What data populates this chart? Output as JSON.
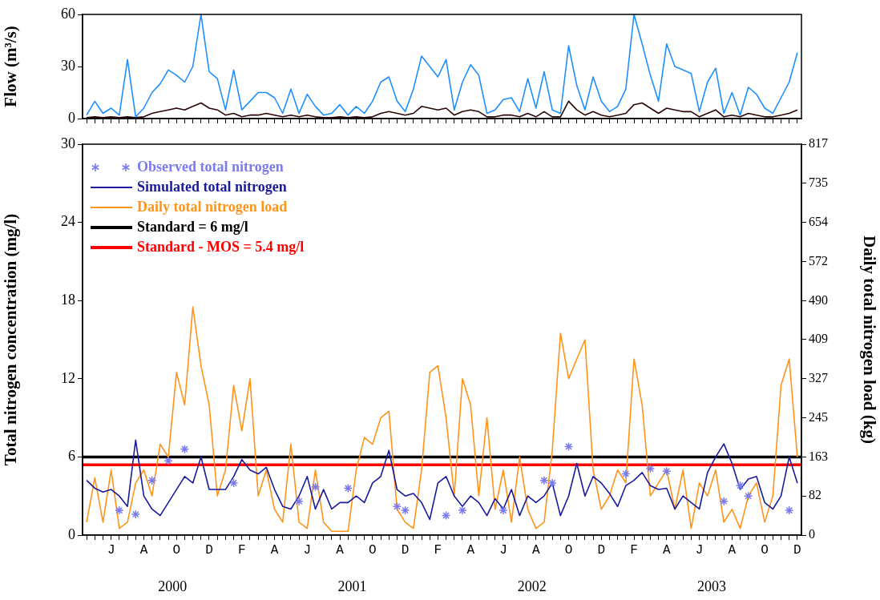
{
  "chart_data": [
    {
      "type": "line",
      "ylabel": "Flow (m³/s)",
      "tick_labels": "y",
      "categories": [
        null,
        null,
        null,
        null,
        null,
        null,
        null,
        null,
        null,
        null,
        null,
        null,
        null,
        null,
        null,
        null,
        null,
        null,
        null,
        null,
        null,
        null,
        null,
        null,
        null,
        null,
        null,
        null,
        null,
        null,
        null,
        null,
        null,
        null,
        null,
        null,
        null,
        null,
        null,
        null,
        null,
        null,
        null,
        null,
        null,
        null,
        null,
        null,
        null,
        null,
        null,
        null,
        null,
        null,
        null,
        null,
        null,
        null,
        null,
        null,
        null,
        null,
        null,
        null,
        null,
        null,
        null,
        null,
        null,
        null,
        null,
        null,
        null,
        null,
        null,
        null,
        null,
        null,
        null,
        null,
        null,
        null,
        null,
        null,
        null,
        null,
        null,
        null
      ],
      "ylim": [
        0,
        60
      ],
      "yticks": [
        0,
        30,
        60
      ],
      "series": [
        {
          "color": "#1e8fff",
          "values": [
            2,
            10,
            3,
            6,
            2,
            34,
            1,
            6,
            15,
            20,
            28,
            25,
            21,
            30,
            60,
            27,
            23,
            5,
            28,
            5,
            10,
            15,
            15,
            12,
            3,
            17,
            3,
            14,
            7,
            2,
            3,
            8,
            2,
            7,
            3,
            10,
            21,
            24,
            10,
            4,
            17,
            36,
            30,
            24,
            34,
            5,
            21,
            31,
            25,
            3,
            5,
            11,
            12,
            4,
            23,
            6,
            27,
            5,
            3,
            42,
            19,
            5,
            24,
            10,
            4,
            7,
            17,
            60,
            43,
            25,
            10,
            43,
            30,
            28,
            26,
            4,
            21,
            29,
            3,
            15,
            2,
            18,
            14,
            6,
            3,
            12,
            21,
            38
          ]
        },
        {
          "color": "#2a0505",
          "values": [
            0.5,
            1,
            0.5,
            1,
            0.5,
            1,
            0.5,
            1,
            3,
            4,
            5,
            6,
            5,
            7,
            9,
            6,
            5,
            2,
            3,
            1,
            2,
            2,
            3,
            2,
            1,
            2,
            1,
            2,
            1,
            0.5,
            0.5,
            1,
            0.5,
            1,
            0.5,
            1,
            3,
            4,
            3,
            2,
            3,
            7,
            6,
            5,
            6,
            2,
            4,
            5,
            4,
            1,
            1,
            2,
            2,
            1,
            3,
            1,
            4,
            1,
            1,
            10,
            5,
            2,
            4,
            2,
            1,
            2,
            3,
            8,
            9,
            6,
            3,
            6,
            5,
            4,
            4,
            1,
            3,
            5,
            1,
            2,
            1,
            3,
            2,
            1,
            1,
            2,
            3,
            5
          ]
        }
      ]
    },
    {
      "type": "line",
      "ylabel": "Total nitrogen concentration (mg/l)",
      "y2label": "Daily total nitrogen load (kg)",
      "legend": "top left",
      "categories": [
        null,
        null,
        null,
        "J",
        null,
        null,
        null,
        "A",
        null,
        null,
        null,
        "O",
        null,
        null,
        null,
        "D",
        null,
        null,
        null,
        "F",
        null,
        null,
        null,
        "A",
        null,
        null,
        null,
        "J",
        null,
        null,
        null,
        "A",
        null,
        null,
        null,
        "O",
        null,
        null,
        null,
        "D",
        null,
        null,
        null,
        "F",
        null,
        null,
        null,
        "A",
        null,
        null,
        null,
        "J",
        null,
        null,
        null,
        "A",
        null,
        null,
        null,
        "O",
        null,
        null,
        null,
        "D",
        null,
        null,
        null,
        "F",
        null,
        null,
        null,
        "A",
        null,
        null,
        null,
        "J",
        null,
        null,
        null,
        "A",
        null,
        null,
        null,
        "O",
        null,
        null,
        null,
        "D"
      ],
      "ylim": [
        0,
        30
      ],
      "yticks": [
        0,
        6,
        12,
        18,
        24,
        30
      ],
      "y2lim": [
        0,
        817
      ],
      "y2ticks": [
        0,
        82,
        163,
        245,
        327,
        409,
        490,
        572,
        654,
        735,
        817
      ],
      "series": [
        {
          "name": "Observed total nitrogen",
          "type": "scatter",
          "marker": "cross",
          "color": "#7b7bf0",
          "values": [
            null,
            null,
            null,
            null,
            1.9,
            null,
            1.6,
            null,
            4.2,
            null,
            5.7,
            null,
            6.6,
            null,
            null,
            null,
            null,
            null,
            4.0,
            null,
            null,
            null,
            null,
            null,
            null,
            null,
            2.6,
            null,
            3.7,
            null,
            null,
            null,
            3.6,
            null,
            null,
            null,
            null,
            null,
            2.2,
            1.9,
            null,
            null,
            null,
            null,
            1.5,
            null,
            1.9,
            null,
            null,
            null,
            null,
            1.9,
            null,
            null,
            null,
            null,
            4.2,
            4.0,
            null,
            6.8,
            null,
            null,
            null,
            null,
            null,
            null,
            4.7,
            null,
            null,
            5.1,
            null,
            4.9,
            null,
            null,
            null,
            null,
            null,
            null,
            2.6,
            null,
            3.8,
            3.0,
            null,
            null,
            null,
            null,
            1.9,
            null
          ]
        },
        {
          "name": "Simulated total nitrogen",
          "color": "#1a1a9c",
          "values": [
            4.2,
            3.6,
            3.3,
            3.5,
            3.0,
            2.2,
            7.3,
            3.0,
            2.0,
            1.5,
            2.5,
            3.5,
            4.5,
            4.0,
            6.0,
            3.5,
            3.5,
            3.5,
            4.5,
            5.8,
            5.0,
            4.7,
            5.2,
            3.5,
            2.2,
            2.0,
            3.0,
            4.5,
            2.0,
            3.5,
            2.0,
            2.5,
            2.5,
            3.0,
            2.5,
            4.0,
            4.5,
            6.5,
            3.5,
            3.0,
            3.2,
            2.5,
            1.2,
            4.0,
            4.5,
            3.0,
            2.2,
            3.0,
            2.5,
            1.5,
            2.8,
            2.0,
            3.5,
            1.5,
            3.0,
            2.5,
            3.0,
            4.0,
            1.5,
            3.0,
            5.5,
            3.0,
            4.5,
            4.0,
            3.2,
            2.2,
            3.8,
            4.2,
            4.8,
            3.8,
            3.5,
            3.6,
            2.0,
            3.0,
            2.5,
            2.0,
            4.8,
            6.0,
            7.0,
            5.5,
            3.5,
            4.3,
            4.5,
            2.5,
            2.0,
            3.0,
            6.0,
            4.0
          ]
        },
        {
          "name": "Daily total nitrogen load",
          "color": "#ff9419",
          "axis": "y2",
          "values": [
            27,
            120,
            27,
            136,
            14,
            27,
            109,
            136,
            82,
            190,
            163,
            340,
            272,
            477,
            354,
            272,
            82,
            136,
            313,
            218,
            327,
            82,
            136,
            54,
            27,
            190,
            27,
            14,
            136,
            27,
            8,
            8,
            8,
            136,
            204,
            190,
            245,
            259,
            54,
            27,
            14,
            136,
            340,
            354,
            245,
            82,
            327,
            272,
            82,
            245,
            54,
            136,
            27,
            163,
            54,
            14,
            27,
            177,
            422,
            327,
            368,
            408,
            136,
            54,
            82,
            136,
            109,
            368,
            272,
            82,
            109,
            136,
            54,
            136,
            14,
            109,
            82,
            136,
            27,
            54,
            14,
            82,
            109,
            27,
            82,
            313,
            368,
            163
          ]
        }
      ],
      "ref_lines": [
        {
          "axis": "y",
          "value": 6,
          "label": "Standard = 6 mg/l",
          "color": "#000000"
        },
        {
          "axis": "y",
          "value": 5.4,
          "label": "Standard - MOS = 5.4 mg/l",
          "color": "#ff0000"
        }
      ],
      "annotations": [
        "2000",
        "2001",
        "2002",
        "2003"
      ]
    }
  ]
}
